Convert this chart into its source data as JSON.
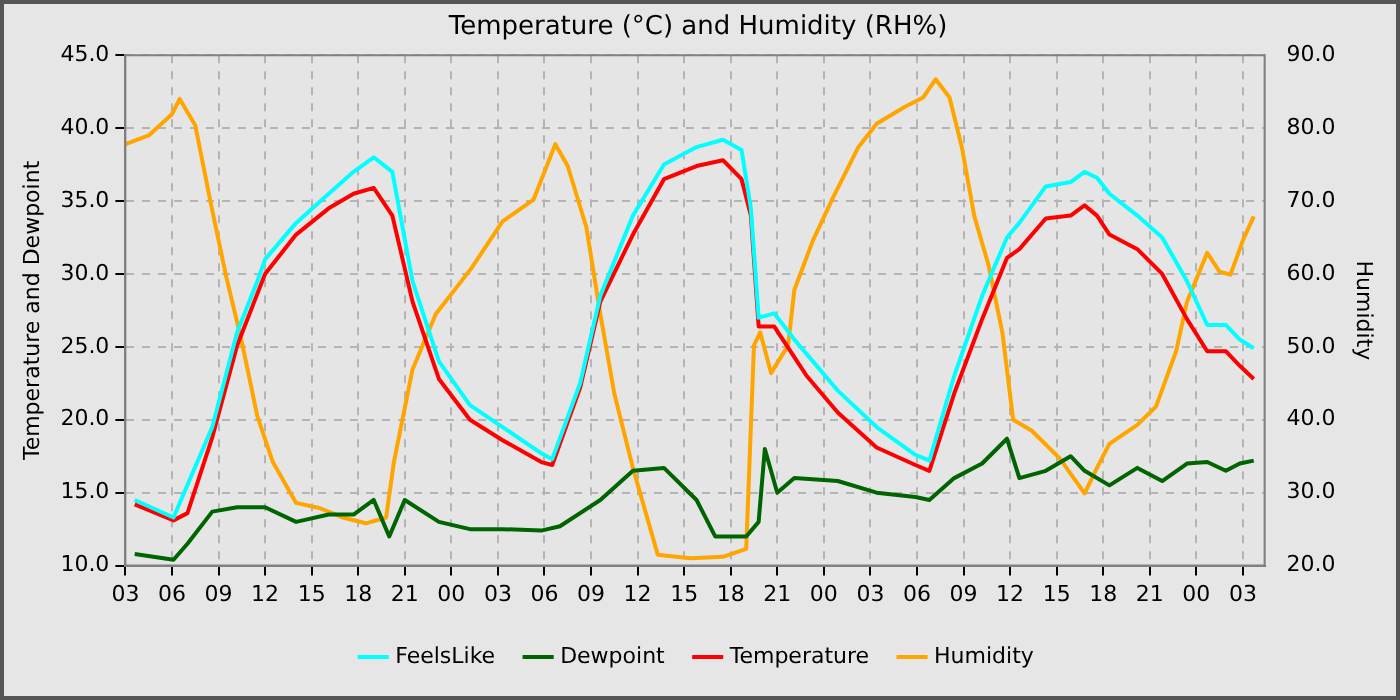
{
  "chart_data": {
    "type": "line",
    "title": "Temperature (°C) and Humidity (RH%)",
    "ylabel": "Temperature and Dewpoint",
    "y2label": "Humidity",
    "xlim": [
      3,
      76.4
    ],
    "xticks": [
      {
        "value": 3,
        "label": "03"
      },
      {
        "value": 6,
        "label": "06"
      },
      {
        "value": 9,
        "label": "09"
      },
      {
        "value": 12,
        "label": "12"
      },
      {
        "value": 15,
        "label": "15"
      },
      {
        "value": 18,
        "label": "18"
      },
      {
        "value": 21,
        "label": "21"
      },
      {
        "value": 24,
        "label": "00"
      },
      {
        "value": 27,
        "label": "03"
      },
      {
        "value": 30,
        "label": "06"
      },
      {
        "value": 33,
        "label": "09"
      },
      {
        "value": 36,
        "label": "12"
      },
      {
        "value": 39,
        "label": "15"
      },
      {
        "value": 42,
        "label": "18"
      },
      {
        "value": 45,
        "label": "21"
      },
      {
        "value": 48,
        "label": "00"
      },
      {
        "value": 51,
        "label": "03"
      },
      {
        "value": 54,
        "label": "06"
      },
      {
        "value": 57,
        "label": "09"
      },
      {
        "value": 60,
        "label": "12"
      },
      {
        "value": 63,
        "label": "15"
      },
      {
        "value": 66,
        "label": "18"
      },
      {
        "value": 69,
        "label": "21"
      },
      {
        "value": 72,
        "label": "00"
      },
      {
        "value": 75,
        "label": "03"
      }
    ],
    "ylim": [
      10,
      45
    ],
    "yticks": [
      {
        "value": 10,
        "label": "10.0"
      },
      {
        "value": 15,
        "label": "15.0"
      },
      {
        "value": 20,
        "label": "20.0"
      },
      {
        "value": 25,
        "label": "25.0"
      },
      {
        "value": 30,
        "label": "30.0"
      },
      {
        "value": 35,
        "label": "35.0"
      },
      {
        "value": 40,
        "label": "40.0"
      },
      {
        "value": 45,
        "label": "45.0"
      }
    ],
    "y2lim": [
      20,
      90
    ],
    "y2ticks": [
      {
        "value": 20,
        "label": "20.0"
      },
      {
        "value": 30,
        "label": "30.0"
      },
      {
        "value": 40,
        "label": "40.0"
      },
      {
        "value": 50,
        "label": "50.0"
      },
      {
        "value": 60,
        "label": "60.0"
      },
      {
        "value": 70,
        "label": "70.0"
      },
      {
        "value": 80,
        "label": "80.0"
      },
      {
        "value": 90,
        "label": "90.0"
      }
    ],
    "grid": true,
    "legend": "bottom",
    "marker": "none",
    "line_style": "solid",
    "series": [
      {
        "name": "FeelsLike",
        "color": "#00ffff",
        "x": [
          3.6,
          6.1,
          8.6,
          10.2,
          11.5,
          12,
          14,
          16.1,
          17.7,
          19,
          20.2,
          21.5,
          23.2,
          25.2,
          27.3,
          29.8,
          30.5,
          32.3,
          33.6,
          35.7,
          37.7,
          39.8,
          41.5,
          42.7,
          43.3,
          43.8,
          44.8,
          46.1,
          46.9,
          48.9,
          51.4,
          53.9,
          54.8,
          56.4,
          58.2,
          59.8,
          60.6,
          62.3,
          63.9,
          64.8,
          65.6,
          66.4,
          68.2,
          69.8,
          71.4,
          72.7,
          73.9,
          74.8,
          75.7
        ],
        "values": [
          14.5,
          13.3,
          19.5,
          26,
          29.5,
          31,
          33.5,
          35.5,
          37,
          38,
          37,
          29.5,
          24,
          21,
          19.5,
          17.7,
          17.3,
          22.5,
          28.5,
          34,
          37.5,
          38.7,
          39.2,
          38.5,
          34.5,
          27,
          27.3,
          25.5,
          24.5,
          22,
          19.5,
          17.6,
          17.2,
          23,
          28.5,
          32.5,
          33.5,
          36,
          36.3,
          37,
          36.6,
          35.5,
          34,
          32.5,
          29.5,
          26.5,
          26.5,
          25.5,
          24.9
        ]
      },
      {
        "name": "Dewpoint",
        "color": "#006400",
        "x": [
          3.6,
          6.1,
          7,
          8.6,
          10.2,
          12,
          14,
          16.1,
          17.7,
          19,
          20,
          21,
          23.2,
          25.2,
          27.3,
          29.8,
          31,
          33.6,
          35.7,
          37.7,
          39.8,
          41,
          43,
          43.8,
          44.2,
          45,
          46.1,
          48.9,
          51.4,
          53.9,
          54.8,
          56.4,
          58.2,
          59.8,
          60.6,
          62.3,
          63.9,
          64.8,
          66.4,
          68.2,
          69.8,
          71.4,
          72.7,
          73.9,
          74.8,
          75.7
        ],
        "values": [
          10.8,
          10.4,
          11.5,
          13.7,
          14,
          14,
          13,
          13.5,
          13.5,
          14.5,
          12,
          14.5,
          13,
          12.5,
          12.5,
          12.4,
          12.7,
          14.5,
          16.5,
          16.7,
          14.5,
          12,
          12,
          13,
          18,
          15,
          16,
          15.8,
          15,
          14.7,
          14.5,
          16,
          17,
          18.7,
          16,
          16.5,
          17.5,
          16.5,
          15.5,
          16.7,
          15.8,
          17,
          17.1,
          16.5,
          17,
          17.2
        ]
      },
      {
        "name": "Temperature",
        "color": "#ff0000",
        "x": [
          3.6,
          6.1,
          7,
          8.6,
          10.2,
          12,
          14,
          16.1,
          17.7,
          19,
          20.2,
          21.5,
          23.2,
          25.2,
          27.3,
          29.8,
          30.5,
          32.3,
          33.6,
          35.7,
          37.7,
          39.8,
          41.5,
          42.7,
          43.3,
          43.8,
          44.8,
          46.1,
          46.9,
          48.9,
          51.4,
          53.9,
          54.8,
          56.4,
          58.2,
          59.8,
          60.6,
          62.3,
          63.9,
          64.8,
          65.6,
          66.4,
          68.2,
          69.8,
          71.4,
          72.7,
          73.9,
          74.8,
          75.7
        ],
        "values": [
          14.2,
          13.1,
          13.6,
          18.8,
          25.1,
          30,
          32.7,
          34.5,
          35.5,
          35.9,
          34,
          28.1,
          22.8,
          20,
          18.6,
          17.1,
          16.9,
          22.2,
          28.1,
          32.7,
          36.5,
          37.4,
          37.8,
          36.5,
          34,
          26.4,
          26.4,
          24.3,
          23,
          20.5,
          18.1,
          16.9,
          16.5,
          21.8,
          26.9,
          31.1,
          31.7,
          33.8,
          34,
          34.7,
          34,
          32.7,
          31.7,
          30,
          26.9,
          24.7,
          24.7,
          23.7,
          22.8
        ]
      },
      {
        "name": "Humidity",
        "color": "#ffa500",
        "axis": "y2",
        "x": [
          3,
          4.5,
          6,
          6.5,
          7.5,
          8.5,
          9.5,
          10.5,
          11.5,
          12.5,
          14,
          15.5,
          17,
          18.5,
          19.8,
          20.3,
          21.5,
          23,
          25.3,
          27.3,
          29.3,
          30.7,
          31.5,
          32.7,
          33.6,
          34.5,
          35.7,
          37.3,
          39.4,
          41.5,
          43,
          43.5,
          43.9,
          44.6,
          45.7,
          46.1,
          47.3,
          48.6,
          50.2,
          51.4,
          53.2,
          54.4,
          55.2,
          56.1,
          56.9,
          57.7,
          58.6,
          59.5,
          60.2,
          61.4,
          63.2,
          64.8,
          65.6,
          66.4,
          68.2,
          69.4,
          70.7,
          71.4,
          72.7,
          73.5,
          74.2,
          75,
          75.7
        ],
        "values": [
          77.8,
          79,
          81.9,
          84,
          80.4,
          69.7,
          59.6,
          50.7,
          40.5,
          34.2,
          28.6,
          27.9,
          26.6,
          25.8,
          26.6,
          34.2,
          46.9,
          54.5,
          60.8,
          67.2,
          70.2,
          77.8,
          74.8,
          66.4,
          54.5,
          43.6,
          33.4,
          21.5,
          21,
          21.2,
          22.3,
          50.2,
          52,
          46.4,
          50.2,
          57.8,
          64.6,
          70.5,
          77.3,
          80.6,
          82.9,
          84.2,
          86.7,
          84.2,
          77.3,
          67.9,
          61.3,
          52,
          40,
          38.5,
          34.7,
          29.9,
          33.4,
          36.7,
          39.3,
          41.8,
          49.4,
          56.2,
          62.9,
          60.3,
          59.9,
          64.6,
          67.9
        ]
      }
    ]
  }
}
